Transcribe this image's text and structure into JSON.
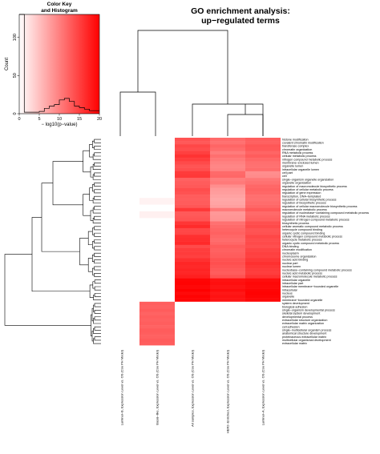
{
  "chart_data": {
    "type": "heatmap",
    "title": "GO enrichment analysis:",
    "subtitle": "up−regulated terms",
    "color_key": {
      "title": "Color Key",
      "subtitle": "and Histogram",
      "xlabel": "− log10(p−value)",
      "ylabel": "Count",
      "x_ticks": [
        0,
        5,
        10,
        15,
        20
      ],
      "y_ticks": [
        0,
        50,
        100
      ],
      "xlim": [
        0,
        20
      ],
      "ylim": [
        0,
        130
      ],
      "low_color": "#ffffff",
      "high_color": "#ff0000",
      "histogram_counts": [
        140,
        2,
        2,
        2,
        3,
        7,
        10,
        12,
        18,
        20,
        16,
        10,
        8,
        6,
        4,
        4
      ]
    },
    "columns": [
      "Luminal−B, Expression Level vs. OS (Cox PH Model)",
      "Basal−like, Expression Level vs. OS (Cox PH Model)",
      "All samples, Expression Level vs. OS (Cox PH Model)",
      "HER2−Enriched, Expression Level vs. OS (Cox PH Model)",
      "Luminal−A, Expression Level vs. OS (Cox PH Model)"
    ],
    "rows": [
      "histone modification",
      "covalent chromatin modification",
      "transferase complex",
      "chromatin organization",
      "RNA metabolic process",
      "cellular metabolic process",
      "nitrogen compound metabolic process",
      "membrane−enclosed lumen",
      "organelle lumen",
      "intracellular organelle lumen",
      "cell part",
      "cell",
      "single−organism organelle organization",
      "organelle organization",
      "regulation of macromolecule biosynthetic process",
      "regulation of cellular metabolic process",
      "regulation of gene expression",
      "transcription, DNA−templated",
      "regulation of cellular biosynthetic process",
      "regulation of biosynthetic process",
      "regulation of cellular macromolecule biosynthetic process",
      "macromolecule metabolic process",
      "regulation of nucleobase−containing compound metabolic process",
      "regulation of RNA metabolic process",
      "regulation of nitrogen compound metabolic process",
      "biosynthetic process",
      "cellular aromatic compound metabolic process",
      "heterocycle compound binding",
      "organic cyclic compound binding",
      "cellular nitrogen compound metabolic process",
      "heterocycle metabolic process",
      "organic cyclic compound metabolic process",
      "DNA binding",
      "chromatin modification",
      "nucleoplasm",
      "chromosome organization",
      "nucleic acid binding",
      "nuclear part",
      "nuclear lumen",
      "nucleobase−containing compound metabolic process",
      "nucleic acid metabolic process",
      "cellular macromolecule metabolic process",
      "intracellular organelle",
      "intracellular part",
      "intracellular membrane−bounded organelle",
      "intracellular",
      "nucleus",
      "organelle",
      "membrane−bounded organelle",
      "system development",
      "biological adhesion",
      "single−organism developmental process",
      "skeletal system development",
      "developmental process",
      "extracellular structure organization",
      "extracellular matrix organization",
      "cell adhesion",
      "single−multicellular organism process",
      "anatomical structure development",
      "proteinaceous extracellular matrix",
      "multicellular organismal development",
      "extracellular matrix"
    ],
    "values": [
      [
        0,
        0,
        13.6,
        11.7,
        12.6
      ],
      [
        0,
        0,
        13.0,
        11.1,
        12.4
      ],
      [
        0,
        0,
        14.4,
        12.1,
        13.2
      ],
      [
        0,
        0,
        14.0,
        11.5,
        13.0
      ],
      [
        0,
        0,
        15.0,
        10.3,
        12.1
      ],
      [
        0,
        0,
        16.0,
        11.3,
        12.8
      ],
      [
        0,
        0,
        15.2,
        10.5,
        11.9
      ],
      [
        0,
        0,
        14.2,
        9.9,
        11.3
      ],
      [
        0,
        0,
        13.4,
        9.5,
        11.1
      ],
      [
        0,
        0,
        13.8,
        9.7,
        11.5
      ],
      [
        0,
        0,
        15.4,
        11.7,
        8.9
      ],
      [
        0,
        0,
        15.6,
        11.9,
        9.1
      ],
      [
        0,
        0,
        12.4,
        10.1,
        10.7
      ],
      [
        0,
        0,
        12.8,
        10.5,
        11.1
      ],
      [
        0,
        0,
        13.0,
        8.9,
        11.9
      ],
      [
        0,
        0,
        14.0,
        7.9,
        12.2
      ],
      [
        0,
        0,
        13.6,
        7.7,
        11.9
      ],
      [
        0,
        0,
        12.8,
        7.3,
        11.3
      ],
      [
        0,
        1.0,
        12.6,
        6.9,
        11.1
      ],
      [
        0,
        1.0,
        12.8,
        7.1,
        11.5
      ],
      [
        0,
        0,
        13.2,
        7.5,
        11.9
      ],
      [
        0,
        0,
        15.6,
        10.5,
        13.0
      ],
      [
        0,
        1.2,
        13.0,
        8.1,
        11.7
      ],
      [
        0,
        1.2,
        13.2,
        8.3,
        12.1
      ],
      [
        0,
        0,
        13.4,
        8.5,
        12.4
      ],
      [
        0,
        0,
        15.8,
        11.1,
        13.8
      ],
      [
        0,
        0,
        16.6,
        11.7,
        14.2
      ],
      [
        0,
        0,
        14.4,
        12.1,
        13.4
      ],
      [
        0,
        0,
        14.6,
        12.4,
        13.6
      ],
      [
        0,
        0,
        16.2,
        11.9,
        14.4
      ],
      [
        0,
        0,
        16.4,
        11.5,
        14.0
      ],
      [
        0,
        0,
        16.8,
        11.9,
        14.2
      ],
      [
        0,
        0,
        14.2,
        12.8,
        13.8
      ],
      [
        0,
        0,
        15.2,
        12.4,
        14.6
      ],
      [
        0,
        0,
        15.4,
        12.6,
        15.0
      ],
      [
        0,
        0,
        15.0,
        12.8,
        14.8
      ],
      [
        0,
        0,
        16.2,
        13.6,
        15.6
      ],
      [
        0,
        0,
        17.0,
        13.8,
        16.2
      ],
      [
        0,
        0,
        16.8,
        13.4,
        15.8
      ],
      [
        0,
        0,
        17.2,
        13.0,
        15.4
      ],
      [
        0,
        0,
        17.0,
        12.8,
        15.2
      ],
      [
        0,
        0,
        17.6,
        13.6,
        16.0
      ],
      [
        0,
        0,
        19.6,
        18.6,
        19.0
      ],
      [
        0,
        0,
        19.8,
        18.8,
        19.4
      ],
      [
        0,
        0,
        19.4,
        18.4,
        19.2
      ],
      [
        0,
        0,
        20.0,
        19.0,
        19.6
      ],
      [
        0,
        0,
        19.2,
        18.2,
        19.8
      ],
      [
        0,
        0,
        19.8,
        18.6,
        19.6
      ],
      [
        0,
        0,
        19.6,
        18.4,
        19.4
      ],
      [
        0,
        12.6,
        0,
        0,
        0
      ],
      [
        0,
        12.4,
        0,
        0,
        0
      ],
      [
        0,
        12.8,
        0,
        0,
        0
      ],
      [
        0,
        12.2,
        0,
        0,
        0
      ],
      [
        0,
        12.6,
        0,
        0,
        0
      ],
      [
        0,
        12.4,
        0,
        0,
        0
      ],
      [
        0,
        12.6,
        0,
        0,
        0
      ],
      [
        0,
        12.2,
        0,
        0,
        0
      ],
      [
        0,
        12.8,
        0,
        0,
        0
      ],
      [
        0,
        12.6,
        0,
        0,
        0
      ],
      [
        0,
        12.4,
        0,
        0,
        0
      ],
      [
        0,
        12.8,
        0,
        0,
        0
      ],
      [
        0,
        12.6,
        0,
        0,
        0
      ]
    ],
    "value_range": [
      0,
      20
    ],
    "low_color": "#ffffff",
    "high_color": "#ff0000"
  }
}
